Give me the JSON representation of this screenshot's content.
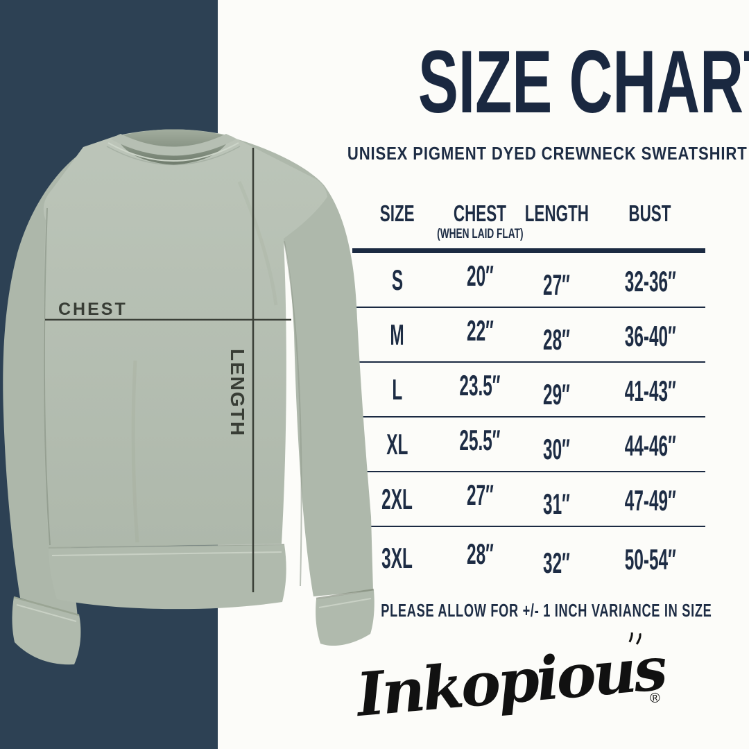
{
  "title": "SIZE CHART",
  "subtitle": "UNISEX PIGMENT DYED CREWNECK SWEATSHIRT",
  "diagram": {
    "chest_label": "CHEST",
    "length_label": "LENGTH"
  },
  "size_table": {
    "headers": [
      {
        "label": "SIZE"
      },
      {
        "label": "CHEST",
        "note": "(WHEN LAID FLAT)"
      },
      {
        "label": "LENGTH"
      },
      {
        "label": "BUST"
      }
    ],
    "rows": [
      [
        "S",
        "20″",
        "27″",
        "32-36″"
      ],
      [
        "M",
        "22″",
        "28″",
        "36-40″"
      ],
      [
        "L",
        "23.5″",
        "29″",
        "41-43″"
      ],
      [
        "XL",
        "25.5″",
        "30″",
        "44-46″"
      ],
      [
        "2XL",
        "27″",
        "31″",
        "47-49″"
      ],
      [
        "3XL",
        "28″",
        "32″",
        "50-54″"
      ]
    ]
  },
  "chart_data": {
    "type": "table",
    "title": "SIZE CHART",
    "subtitle": "UNISEX PIGMENT DYED CREWNECK SWEATSHIRT",
    "columns": [
      "SIZE",
      "CHEST (WHEN LAID FLAT)",
      "LENGTH",
      "BUST"
    ],
    "rows": [
      {
        "size": "S",
        "chest_in": 20,
        "length_in": 27,
        "bust_in": "32-36"
      },
      {
        "size": "M",
        "chest_in": 22,
        "length_in": 28,
        "bust_in": "36-40"
      },
      {
        "size": "L",
        "chest_in": 23.5,
        "length_in": 29,
        "bust_in": "41-43"
      },
      {
        "size": "XL",
        "chest_in": 25.5,
        "length_in": 30,
        "bust_in": "44-46"
      },
      {
        "size": "2XL",
        "chest_in": 27,
        "length_in": 31,
        "bust_in": "47-49"
      },
      {
        "size": "3XL",
        "chest_in": 28,
        "length_in": 32,
        "bust_in": "50-54"
      }
    ],
    "units": "inches"
  },
  "footer_note": "PLEASE ALLOW FOR +/- 1 INCH VARIANCE IN SIZE",
  "brand": {
    "logo_text": "Inkopious",
    "registered_mark": "®"
  },
  "colors": {
    "navy_panel": "#2d4154",
    "text_navy": "#1d2c44",
    "rule_navy": "#1b2a42",
    "sweatshirt_sage": "#b5beb2",
    "label_charcoal": "#383d35",
    "background": "#fcfcf9"
  }
}
